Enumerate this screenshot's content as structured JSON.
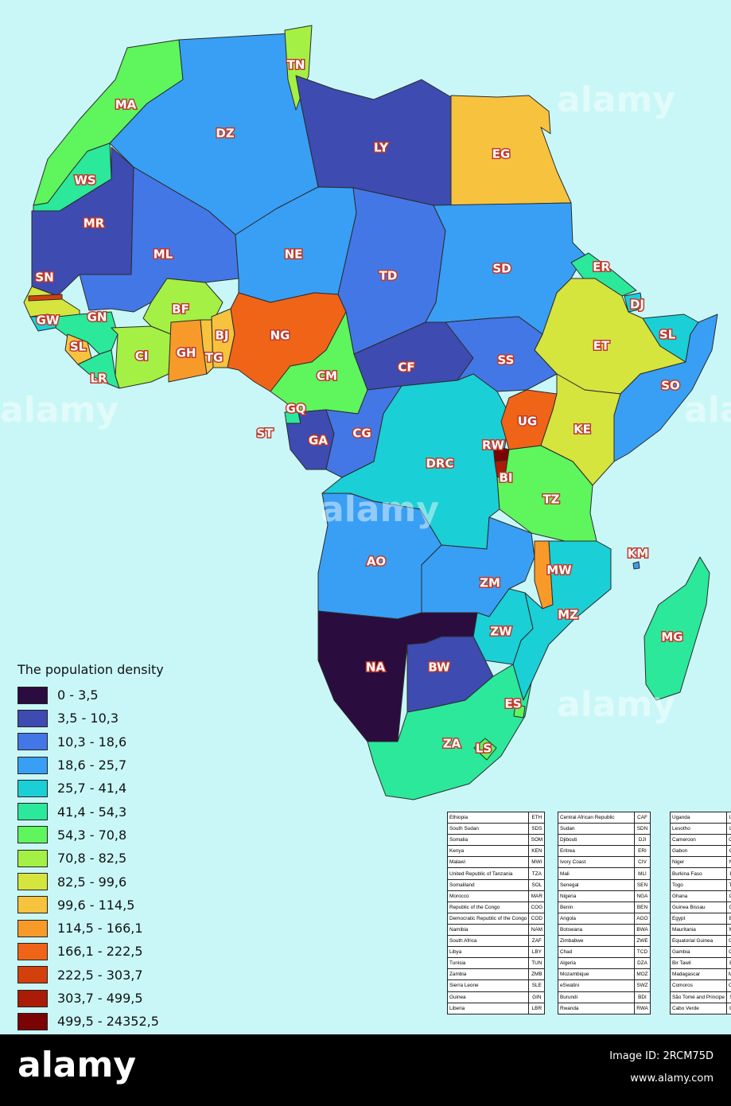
{
  "legend": {
    "title": "The population density",
    "classes": [
      {
        "label": "0 - 3,5",
        "color": "#2b0c3f"
      },
      {
        "label": "3,5 - 10,3",
        "color": "#3e4bb0"
      },
      {
        "label": "10,3 - 18,6",
        "color": "#4477e6"
      },
      {
        "label": "18,6 - 25,7",
        "color": "#389ff5"
      },
      {
        "label": "25,7 - 41,4",
        "color": "#1bcfd6"
      },
      {
        "label": "41,4 - 54,3",
        "color": "#2be89b"
      },
      {
        "label": "54,3 - 70,8",
        "color": "#5ef55d"
      },
      {
        "label": "70,8 - 82,5",
        "color": "#a5f044"
      },
      {
        "label": "82,5 - 99,6",
        "color": "#d6e43e"
      },
      {
        "label": "99,6 - 114,5",
        "color": "#f7c33e"
      },
      {
        "label": "114,5 - 166,1",
        "color": "#f89a2a"
      },
      {
        "label": "166,1 - 222,5",
        "color": "#f06418"
      },
      {
        "label": "222,5 - 303,7",
        "color": "#d3400c"
      },
      {
        "label": "303,7 - 499,5",
        "color": "#ab1c06"
      },
      {
        "label": "499,5 - 24352,5",
        "color": "#7a0403"
      }
    ]
  },
  "labels": {
    "MA": "MA",
    "DZ": "DZ",
    "TN": "TN",
    "LY": "LY",
    "EG": "EG",
    "WS": "WS",
    "MR": "MR",
    "ML": "ML",
    "NE": "NE",
    "TD": "TD",
    "SD": "SD",
    "ER": "ER",
    "DJ": "DJ",
    "SL_SOM": "SL",
    "ET": "ET",
    "SO": "SO",
    "SN": "SN",
    "GW": "GW",
    "GN": "GN",
    "SL": "SL",
    "LR": "LR",
    "CI": "CI",
    "BF": "BF",
    "GH": "GH",
    "BJ": "BJ",
    "TG": "TG",
    "NG": "NG",
    "CM": "CM",
    "CF": "CF",
    "SS": "SS",
    "GQ": "GQ",
    "ST": "ST",
    "GA": "GA",
    "CG": "CG",
    "DRC": "DRC",
    "UG": "UG",
    "KE": "KE",
    "RW": "RW",
    "BI": "BI",
    "TZ": "TZ",
    "AO": "AO",
    "ZM": "ZM",
    "MW": "MW",
    "KM": "KM",
    "MZ": "MZ",
    "ZW": "ZW",
    "MG": "MG",
    "NA": "NA",
    "BW": "BW",
    "ES": "ES",
    "ZA": "ZA",
    "LS": "LS"
  },
  "fills": {
    "MA": "#5ef55d",
    "WS": "#2be89b",
    "MR": "#3e4bb0",
    "DZ": "#389ff5",
    "TN": "#a5f044",
    "LY": "#3e4bb0",
    "EG": "#f7c33e",
    "ML": "#4477e6",
    "NE": "#389ff5",
    "TD": "#4477e6",
    "SD": "#389ff5",
    "ER": "#2be89b",
    "DJ": "#1bcfd6",
    "ET": "#d6e43e",
    "SOL": "#1bcfd6",
    "SO": "#389ff5",
    "SN": "#d6e43e",
    "GM": "#d3400c",
    "GW": "#1bcfd6",
    "GN": "#2be89b",
    "SL": "#f7c33e",
    "LR": "#2be89b",
    "CI": "#a5f044",
    "BF": "#a5f044",
    "GH": "#f89a2a",
    "TG": "#f7c33e",
    "BJ": "#f7c33e",
    "NG": "#f06418",
    "CM": "#5ef55d",
    "CF": "#3e4bb0",
    "SS": "#4477e6",
    "GQ": "#2be89b",
    "GA": "#3e4bb0",
    "CG": "#4477e6",
    "DRC": "#1bcfd6",
    "UG": "#f06418",
    "KE": "#d6e43e",
    "RW": "#7a0403",
    "BI": "#ab1c06",
    "TZ": "#5ef55d",
    "AO": "#389ff5",
    "ZM": "#389ff5",
    "MW": "#f89a2a",
    "MZ": "#1bcfd6",
    "ZW": "#1bcfd6",
    "NA": "#2b0c3f",
    "BW": "#3e4bb0",
    "ZA": "#2be89b",
    "LS": "#5ef55d",
    "ES": "#5ef55d",
    "MG": "#2be89b",
    "KM": "#389ff5"
  },
  "tables": [
    [
      [
        "Ethiopia",
        "ETH"
      ],
      [
        "South Sudan",
        "SDS"
      ],
      [
        "Somalia",
        "SOM"
      ],
      [
        "Kenya",
        "KEN"
      ],
      [
        "Malawi",
        "MWI"
      ],
      [
        "United Republic of Tanzania",
        "TZA"
      ],
      [
        "Somaliland",
        "SOL"
      ],
      [
        "Morocco",
        "MAR"
      ],
      [
        "Republic of the Congo",
        "COG"
      ],
      [
        "Democratic Republic of the Congo",
        "COD"
      ],
      [
        "Namibia",
        "NAM"
      ],
      [
        "South Africa",
        "ZAF"
      ],
      [
        "Libya",
        "LBY"
      ],
      [
        "Tunisia",
        "TUN"
      ],
      [
        "Zambia",
        "ZMB"
      ],
      [
        "Sierra Leone",
        "SLE"
      ],
      [
        "Guinea",
        "GIN"
      ],
      [
        "Liberia",
        "LBR"
      ]
    ],
    [
      [
        "Central African Republic",
        "CAF"
      ],
      [
        "Sudan",
        "SDN"
      ],
      [
        "Djibouti",
        "DJI"
      ],
      [
        "Eritrea",
        "ERI"
      ],
      [
        "Ivory Coast",
        "CIV"
      ],
      [
        "Mali",
        "MLI"
      ],
      [
        "Senegal",
        "SEN"
      ],
      [
        "Nigeria",
        "NGA"
      ],
      [
        "Benin",
        "BEN"
      ],
      [
        "Angola",
        "AGO"
      ],
      [
        "Botswana",
        "BWA"
      ],
      [
        "Zimbabwe",
        "ZWE"
      ],
      [
        "Chad",
        "TCD"
      ],
      [
        "Algeria",
        "DZA"
      ],
      [
        "Mozambique",
        "MOZ"
      ],
      [
        "eSwatini",
        "SWZ"
      ],
      [
        "Burundi",
        "BDI"
      ],
      [
        "Rwanda",
        "RWA"
      ]
    ],
    [
      [
        "Uganda",
        "UGA"
      ],
      [
        "Lesotho",
        "LSO"
      ],
      [
        "Cameroon",
        "CMR"
      ],
      [
        "Gabon",
        "GAB"
      ],
      [
        "Niger",
        "NER"
      ],
      [
        "Burkina Faso",
        "BFA"
      ],
      [
        "Togo",
        "TGO"
      ],
      [
        "Ghana",
        "GHA"
      ],
      [
        "Guinea Bissau",
        "GNB"
      ],
      [
        "Egypt",
        "EGY"
      ],
      [
        "Mauritania",
        "MRT"
      ],
      [
        "Equatorial Guinea",
        "GNQ"
      ],
      [
        "Gambia",
        "GMB"
      ],
      [
        "Bir Tawil",
        "BRT"
      ],
      [
        "Madagascar",
        "MDG"
      ],
      [
        "Comoros",
        "COM"
      ],
      [
        "São Tomé and Principe",
        "STP"
      ],
      [
        "Cabo Verde",
        "CPV"
      ]
    ]
  ],
  "watermark": "alamy",
  "footer": {
    "brand": "alamy",
    "image_id": "Image ID: 2RCM75D",
    "url": "www.alamy.com"
  }
}
